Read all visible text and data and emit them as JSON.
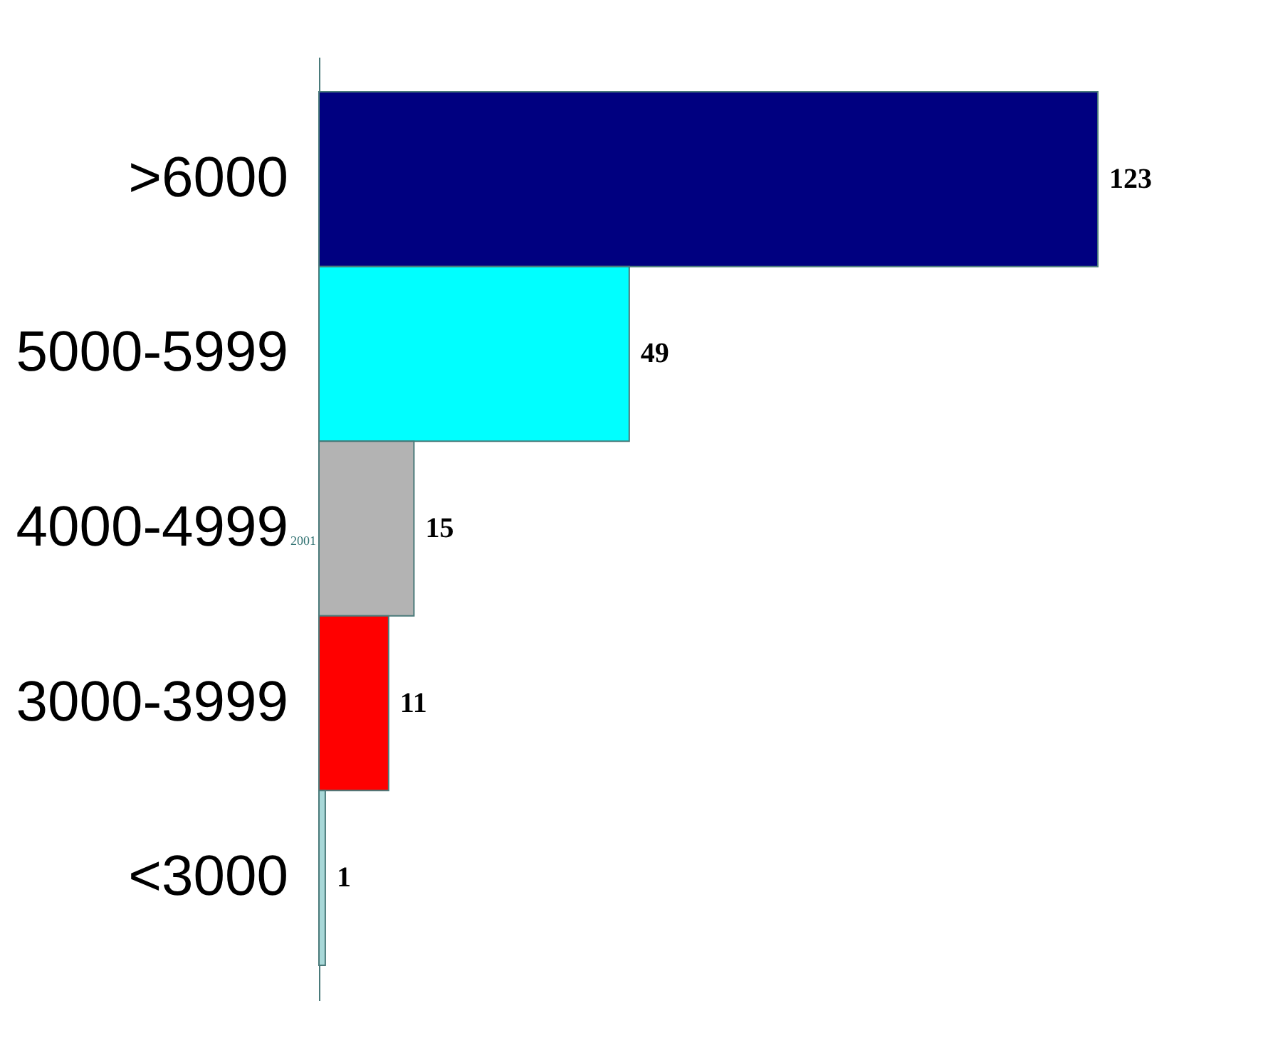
{
  "chart_data": {
    "type": "bar",
    "orientation": "horizontal",
    "categories": [
      ">6000",
      "5000-5999",
      "4000-4999",
      "3000-3999",
      "<3000"
    ],
    "values": [
      123,
      49,
      15,
      11,
      1
    ],
    "colors": [
      "#000080",
      "#00ffff",
      "#b3b3b3",
      "#ff0000",
      "#a8d8d8"
    ],
    "data_labels": true,
    "grid": false,
    "legend": false,
    "annotations": [
      "2001"
    ]
  }
}
